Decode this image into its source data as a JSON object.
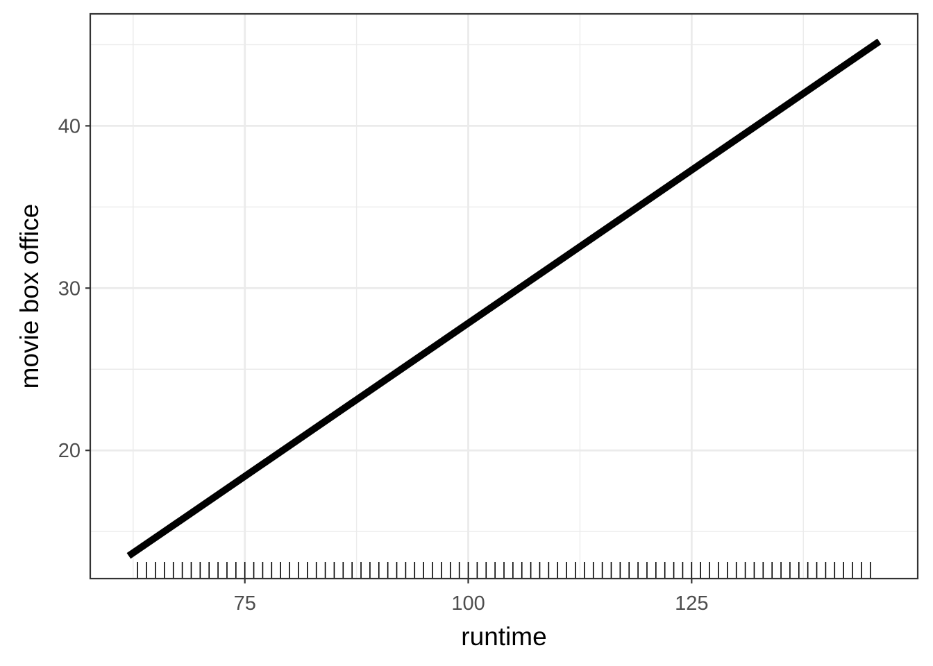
{
  "chart_data": {
    "type": "line",
    "xlabel": "runtime",
    "ylabel": "movie box office",
    "xlim": [
      57.7,
      150.3
    ],
    "ylim": [
      12.1,
      46.9
    ],
    "x_ticks": [
      75,
      100,
      125
    ],
    "x_minor_ticks": [
      62.5,
      87.5,
      112.5,
      137.5
    ],
    "y_ticks": [
      20,
      30,
      40
    ],
    "y_minor_ticks": [
      15,
      25,
      35,
      45
    ],
    "grid": true,
    "legend": "none",
    "series": [
      {
        "x": [
          62,
          146
        ],
        "y": [
          13.5,
          45.2
        ],
        "color": "#000000"
      }
    ],
    "rug_x": [
      63,
      64,
      65,
      66,
      67,
      68,
      69,
      70,
      71,
      72,
      73,
      74,
      75,
      76,
      77,
      78,
      79,
      80,
      81,
      82,
      83,
      84,
      85,
      86,
      87,
      88,
      89,
      90,
      91,
      92,
      93,
      94,
      95,
      96,
      97,
      98,
      99,
      100,
      101,
      102,
      103,
      104,
      105,
      106,
      107,
      108,
      109,
      110,
      111,
      112,
      113,
      114,
      115,
      116,
      117,
      118,
      119,
      120,
      121,
      122,
      123,
      124,
      125,
      126,
      127,
      128,
      129,
      130,
      131,
      132,
      133,
      134,
      135,
      136,
      137,
      138,
      139,
      140,
      141,
      142,
      143,
      144,
      145
    ]
  }
}
